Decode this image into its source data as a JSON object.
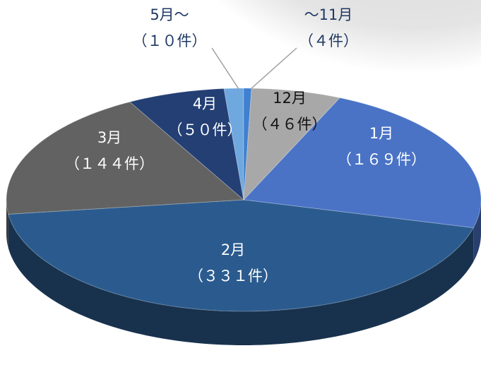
{
  "chart_data": {
    "type": "pie",
    "categories": [
      "1月",
      "2月",
      "3月",
      "4月",
      "5月～",
      "～11月",
      "12月"
    ],
    "values": [
      169,
      331,
      144,
      50,
      10,
      4,
      46
    ],
    "value_labels": [
      "（１６９件）",
      "（３３１件）",
      "（１４４件）",
      "（５０件）",
      "（１０件）",
      "（４件）",
      "（４６件）"
    ],
    "colors": [
      "#4a73c6",
      "#2b5b8e",
      "#626262",
      "#233f74",
      "#6fa8de",
      "#3f80d0",
      "#a8a8a8"
    ]
  }
}
